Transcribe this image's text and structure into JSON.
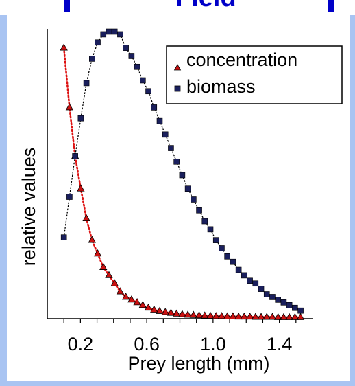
{
  "header": {
    "title_fragment": "Field"
  },
  "colors": {
    "background": "#a9c4f2",
    "accent": "#0000c8",
    "concentration_marker": "#cc1111",
    "biomass_marker": "#1a1f5c",
    "concentration_line": "#dd1111",
    "biomass_line": "#000000"
  },
  "chart_data": {
    "type": "scatter",
    "title": "",
    "xlabel": "Prey length (mm)",
    "ylabel": "relative values",
    "xlim": [
      0,
      1.6
    ],
    "ylim": [
      0,
      1.06
    ],
    "x_ticks": [
      0.2,
      0.6,
      1.0,
      1.4
    ],
    "x_tick_labels": [
      "0.2",
      "0.6",
      "1.0",
      "1.4"
    ],
    "y_tick_labels_shown": false,
    "legend": {
      "position": "top-right",
      "entries": [
        "concentration",
        "biomass"
      ]
    },
    "series": [
      {
        "name": "concentration",
        "marker": "triangle",
        "line": "red dotted",
        "x": [
          0.1,
          0.134,
          0.168,
          0.202,
          0.236,
          0.27,
          0.304,
          0.338,
          0.372,
          0.406,
          0.44,
          0.474,
          0.508,
          0.542,
          0.576,
          0.61,
          0.644,
          0.678,
          0.712,
          0.746,
          0.78,
          0.814,
          0.848,
          0.882,
          0.916,
          0.95,
          0.984,
          1.018,
          1.052,
          1.086,
          1.12,
          1.154,
          1.188,
          1.222,
          1.256,
          1.29,
          1.324,
          1.358,
          1.392,
          1.426,
          1.46,
          1.494,
          1.528
        ],
        "y": [
          1.0,
          0.78,
          0.6,
          0.48,
          0.37,
          0.29,
          0.24,
          0.19,
          0.16,
          0.13,
          0.1,
          0.08,
          0.07,
          0.06,
          0.05,
          0.04,
          0.033,
          0.028,
          0.024,
          0.021,
          0.018,
          0.016,
          0.014,
          0.013,
          0.012,
          0.011,
          0.01,
          0.009,
          0.009,
          0.008,
          0.008,
          0.007,
          0.007,
          0.007,
          0.006,
          0.006,
          0.006,
          0.006,
          0.005,
          0.005,
          0.005,
          0.005,
          0.005
        ]
      },
      {
        "name": "biomass",
        "marker": "square",
        "line": "black dotted",
        "x": [
          0.1,
          0.134,
          0.168,
          0.202,
          0.236,
          0.27,
          0.304,
          0.338,
          0.372,
          0.406,
          0.44,
          0.474,
          0.508,
          0.542,
          0.576,
          0.61,
          0.644,
          0.678,
          0.712,
          0.746,
          0.78,
          0.814,
          0.848,
          0.882,
          0.916,
          0.95,
          0.984,
          1.018,
          1.052,
          1.086,
          1.12,
          1.154,
          1.188,
          1.222,
          1.256,
          1.29,
          1.324,
          1.358,
          1.392,
          1.426,
          1.46,
          1.494,
          1.528
        ],
        "y": [
          0.3,
          0.45,
          0.6,
          0.74,
          0.87,
          0.96,
          1.02,
          1.05,
          1.06,
          1.06,
          1.05,
          1.0,
          0.97,
          0.93,
          0.88,
          0.84,
          0.78,
          0.73,
          0.68,
          0.63,
          0.58,
          0.53,
          0.48,
          0.44,
          0.4,
          0.36,
          0.33,
          0.29,
          0.26,
          0.23,
          0.21,
          0.18,
          0.16,
          0.14,
          0.13,
          0.11,
          0.09,
          0.08,
          0.07,
          0.06,
          0.05,
          0.04,
          0.03
        ]
      }
    ]
  }
}
